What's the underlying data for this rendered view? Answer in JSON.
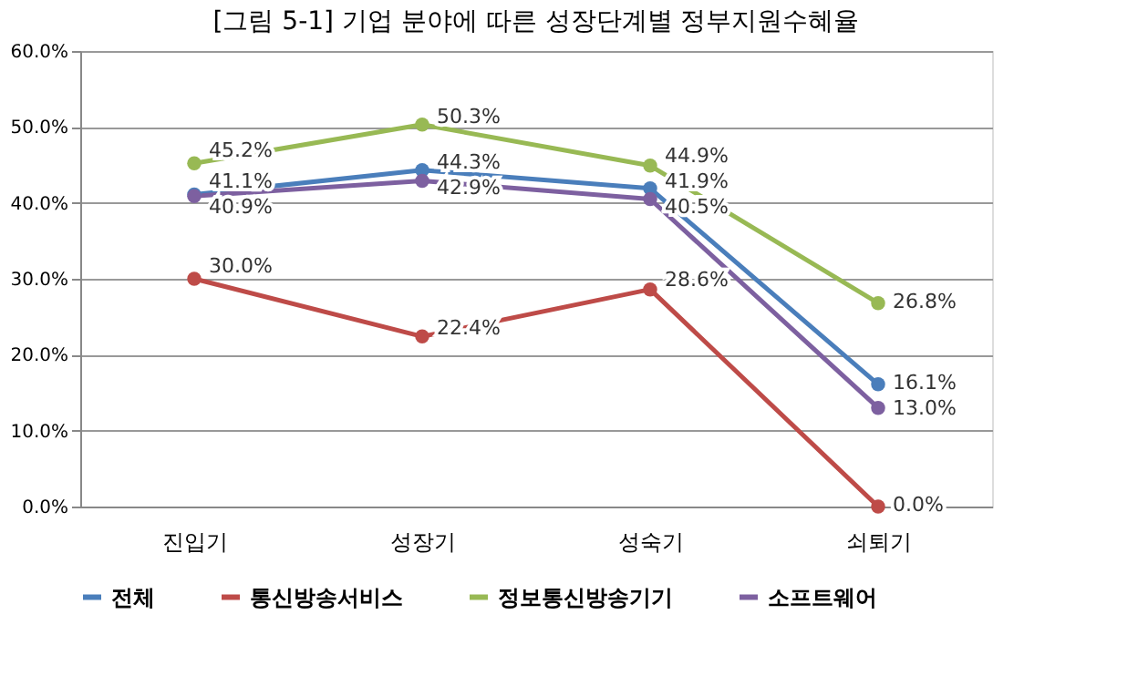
{
  "chart_data": {
    "type": "line",
    "title": "[그림 5-1] 기업 분야에 따른 성장단계별 정부지원수혜율",
    "categories": [
      "진입기",
      "성장기",
      "성숙기",
      "쇠퇴기"
    ],
    "series": [
      {
        "name": "전체",
        "color": "#4a7ebb",
        "values": [
          41.1,
          44.3,
          41.9,
          16.1
        ],
        "value_labels": [
          "41.1%",
          "44.3%",
          "41.9%",
          "16.1%"
        ]
      },
      {
        "name": "통신방송서비스",
        "color": "#be4b48",
        "values": [
          30.0,
          22.4,
          28.6,
          0.0
        ],
        "value_labels": [
          "30.0%",
          "22.4%",
          "28.6%",
          "0.0%"
        ]
      },
      {
        "name": "정보통신방송기기",
        "color": "#98b954",
        "values": [
          45.2,
          50.3,
          44.9,
          26.8
        ],
        "value_labels": [
          "45.2%",
          "50.3%",
          "44.9%",
          "26.8%"
        ]
      },
      {
        "name": "소프트웨어",
        "color": "#7d60a0",
        "values": [
          40.9,
          42.9,
          40.5,
          13.0
        ],
        "value_labels": [
          "40.9%",
          "42.9%",
          "40.5%",
          "13.0%"
        ]
      }
    ],
    "ylim": [
      0,
      60
    ],
    "yticks": [
      {
        "value": 0,
        "label": "0.0%"
      },
      {
        "value": 10,
        "label": "10.0%"
      },
      {
        "value": 20,
        "label": "20.0%"
      },
      {
        "value": 30,
        "label": "30.0%"
      },
      {
        "value": 40,
        "label": "40.0%"
      },
      {
        "value": 50,
        "label": "50.0%"
      },
      {
        "value": 60,
        "label": "60.0%"
      }
    ],
    "grid": "y",
    "legend": "bottom",
    "marker": "circle",
    "line_style": "solid"
  }
}
